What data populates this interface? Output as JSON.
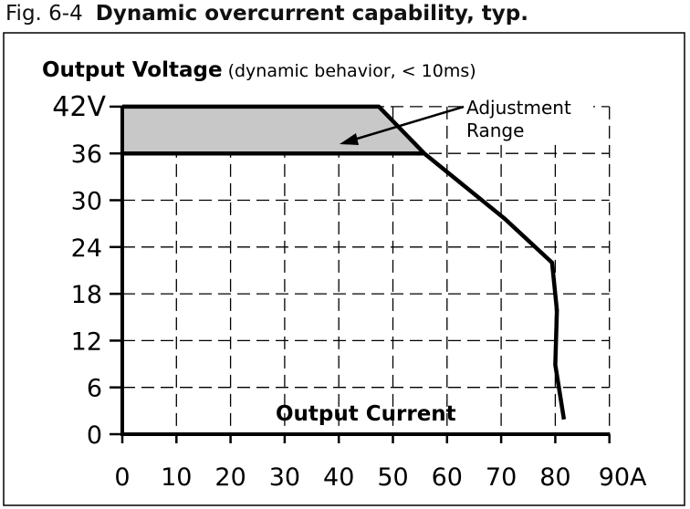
{
  "caption": {
    "number": "Fig. 6-4",
    "title": "Dynamic overcurrent capability, typ."
  },
  "chart_data": {
    "type": "line",
    "title": "",
    "ylabel": "Output Voltage",
    "ylabel_note": "(dynamic behavior, < 10ms)",
    "xlabel": "Output Current",
    "xlim": [
      0,
      90
    ],
    "ylim": [
      0,
      42
    ],
    "x_ticks": [
      "0",
      "10",
      "20",
      "30",
      "40",
      "50",
      "60",
      "70",
      "80",
      "90A"
    ],
    "x_tick_values": [
      0,
      10,
      20,
      30,
      40,
      50,
      60,
      70,
      80,
      90
    ],
    "y_ticks": [
      "0",
      "6",
      "12",
      "18",
      "24",
      "30",
      "36",
      "42V"
    ],
    "y_tick_values": [
      0,
      6,
      12,
      18,
      24,
      30,
      36,
      42
    ],
    "grid": true,
    "series": [
      {
        "points": [
          [
            0,
            42
          ],
          [
            47.4,
            42
          ],
          [
            55.8,
            36
          ],
          [
            70.7,
            27.6
          ],
          [
            79.4,
            22
          ],
          [
            80.3,
            15.9
          ],
          [
            80,
            8.9
          ],
          [
            81.6,
            1.9
          ]
        ]
      }
    ],
    "lower_boundary": [
      [
        0,
        36
      ],
      [
        55.8,
        36
      ]
    ],
    "shaded_region": {
      "label": "Adjustment Range",
      "v_range": [
        36,
        42
      ],
      "color": "#c8c8c8"
    },
    "annotation": {
      "line1": "Adjustment",
      "line2": "Range"
    },
    "line_color": "#000000"
  }
}
